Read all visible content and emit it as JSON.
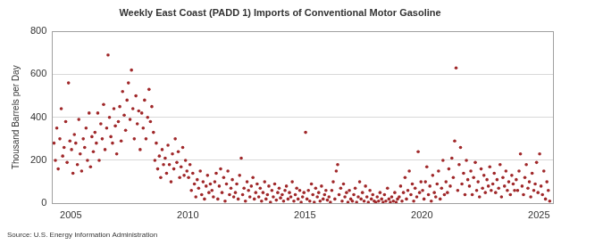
{
  "chart_data": {
    "type": "scatter",
    "title": "Weekly East Coast (PADD 1) Imports of Conventional Motor Gasoline",
    "y_label": "Thousand Barrels per Day",
    "source": "Source: U.S. Energy Information Administration",
    "color": "#a0282a",
    "marker": "circle",
    "grid": true,
    "xlim": [
      2004.2,
      2025.6
    ],
    "xticks": [
      2005,
      2010,
      2015,
      2020,
      2025
    ],
    "ylim": [
      0,
      800
    ],
    "yticks": [
      0,
      200,
      400,
      600,
      800
    ],
    "x": [
      2004.28,
      2004.34,
      2004.4,
      2004.46,
      2004.53,
      2004.59,
      2004.65,
      2004.71,
      2004.78,
      2004.84,
      2004.9,
      2004.96,
      2005.03,
      2005.09,
      2005.15,
      2005.21,
      2005.28,
      2005.34,
      2005.4,
      2005.46,
      2005.53,
      2005.59,
      2005.65,
      2005.71,
      2005.78,
      2005.84,
      2005.9,
      2005.96,
      2006.03,
      2006.09,
      2006.15,
      2006.21,
      2006.28,
      2006.34,
      2006.4,
      2006.46,
      2006.53,
      2006.59,
      2006.65,
      2006.71,
      2006.78,
      2006.84,
      2006.9,
      2006.96,
      2007.03,
      2007.09,
      2007.15,
      2007.21,
      2007.28,
      2007.34,
      2007.4,
      2007.46,
      2007.53,
      2007.59,
      2007.65,
      2007.71,
      2007.78,
      2007.84,
      2007.9,
      2007.96,
      2008.03,
      2008.09,
      2008.15,
      2008.21,
      2008.28,
      2008.34,
      2008.4,
      2008.46,
      2008.53,
      2008.59,
      2008.65,
      2008.71,
      2008.78,
      2008.84,
      2008.9,
      2008.96,
      2009.03,
      2009.09,
      2009.15,
      2009.21,
      2009.28,
      2009.34,
      2009.4,
      2009.46,
      2009.53,
      2009.59,
      2009.65,
      2009.71,
      2009.78,
      2009.84,
      2009.9,
      2009.96,
      2010.03,
      2010.09,
      2010.15,
      2010.21,
      2010.28,
      2010.34,
      2010.4,
      2010.46,
      2010.53,
      2010.59,
      2010.65,
      2010.71,
      2010.78,
      2010.84,
      2010.9,
      2010.96,
      2011.03,
      2011.09,
      2011.15,
      2011.21,
      2011.28,
      2011.34,
      2011.4,
      2011.46,
      2011.53,
      2011.59,
      2011.65,
      2011.71,
      2011.78,
      2011.84,
      2011.9,
      2011.96,
      2012.03,
      2012.09,
      2012.15,
      2012.21,
      2012.28,
      2012.34,
      2012.4,
      2012.46,
      2012.53,
      2012.59,
      2012.65,
      2012.71,
      2012.78,
      2012.84,
      2012.9,
      2012.96,
      2013.03,
      2013.09,
      2013.15,
      2013.21,
      2013.28,
      2013.34,
      2013.4,
      2013.46,
      2013.53,
      2013.59,
      2013.65,
      2013.71,
      2013.78,
      2013.84,
      2013.9,
      2013.96,
      2014.03,
      2014.09,
      2014.15,
      2014.21,
      2014.28,
      2014.34,
      2014.4,
      2014.46,
      2014.53,
      2014.59,
      2014.65,
      2014.71,
      2014.78,
      2014.84,
      2014.9,
      2014.96,
      2015.03,
      2015.09,
      2015.15,
      2015.21,
      2015.28,
      2015.34,
      2015.4,
      2015.46,
      2015.53,
      2015.59,
      2015.65,
      2015.71,
      2015.78,
      2015.84,
      2015.9,
      2015.96,
      2016.03,
      2016.09,
      2016.15,
      2016.21,
      2016.28,
      2016.34,
      2016.4,
      2016.46,
      2016.53,
      2016.59,
      2016.65,
      2016.71,
      2016.78,
      2016.84,
      2016.9,
      2016.96,
      2017.03,
      2017.09,
      2017.15,
      2017.21,
      2017.28,
      2017.34,
      2017.4,
      2017.46,
      2017.53,
      2017.59,
      2017.65,
      2017.71,
      2017.78,
      2017.84,
      2017.9,
      2017.96,
      2018.03,
      2018.09,
      2018.15,
      2018.21,
      2018.28,
      2018.34,
      2018.4,
      2018.46,
      2018.53,
      2018.59,
      2018.65,
      2018.71,
      2018.78,
      2018.84,
      2018.9,
      2018.96,
      2019.03,
      2019.09,
      2019.15,
      2019.21,
      2019.28,
      2019.34,
      2019.4,
      2019.46,
      2019.53,
      2019.59,
      2019.65,
      2019.71,
      2019.78,
      2019.84,
      2019.9,
      2019.96,
      2020.03,
      2020.09,
      2020.15,
      2020.21,
      2020.28,
      2020.34,
      2020.4,
      2020.46,
      2020.53,
      2020.59,
      2020.65,
      2020.71,
      2020.78,
      2020.84,
      2020.9,
      2020.96,
      2021.03,
      2021.09,
      2021.15,
      2021.21,
      2021.28,
      2021.34,
      2021.4,
      2021.46,
      2021.53,
      2021.59,
      2021.65,
      2021.71,
      2021.78,
      2021.84,
      2021.9,
      2021.96,
      2022.03,
      2022.09,
      2022.15,
      2022.21,
      2022.28,
      2022.34,
      2022.4,
      2022.46,
      2022.53,
      2022.59,
      2022.65,
      2022.71,
      2022.78,
      2022.84,
      2022.9,
      2022.96,
      2023.03,
      2023.09,
      2023.15,
      2023.21,
      2023.28,
      2023.34,
      2023.4,
      2023.46,
      2023.53,
      2023.59,
      2023.65,
      2023.71,
      2023.78,
      2023.84,
      2023.9,
      2023.96,
      2024.03,
      2024.09,
      2024.15,
      2024.21,
      2024.28,
      2024.34,
      2024.4,
      2024.46,
      2024.53,
      2024.59,
      2024.65,
      2024.71,
      2024.78,
      2024.84,
      2024.9,
      2024.96,
      2025.03,
      2025.09,
      2025.15,
      2025.21,
      2025.28,
      2025.34,
      2025.4,
      2025.46
    ],
    "values": [
      280,
      200,
      350,
      160,
      300,
      440,
      220,
      260,
      380,
      190,
      560,
      290,
      250,
      140,
      320,
      280,
      180,
      390,
      230,
      150,
      300,
      260,
      350,
      200,
      420,
      170,
      310,
      240,
      330,
      280,
      420,
      200,
      370,
      300,
      460,
      250,
      350,
      690,
      400,
      310,
      280,
      440,
      360,
      230,
      380,
      450,
      290,
      520,
      410,
      340,
      480,
      560,
      390,
      620,
      440,
      300,
      500,
      370,
      430,
      250,
      420,
      350,
      480,
      300,
      400,
      530,
      380,
      450,
      330,
      200,
      280,
      160,
      220,
      120,
      250,
      180,
      210,
      140,
      270,
      180,
      100,
      230,
      160,
      300,
      190,
      240,
      120,
      170,
      260,
      130,
      200,
      150,
      120,
      180,
      60,
      140,
      90,
      30,
      110,
      70,
      150,
      40,
      100,
      20,
      80,
      130,
      50,
      90,
      60,
      30,
      100,
      140,
      20,
      80,
      160,
      50,
      120,
      10,
      90,
      150,
      40,
      70,
      110,
      30,
      50,
      90,
      20,
      130,
      210,
      40,
      70,
      10,
      100,
      60,
      30,
      80,
      120,
      20,
      50,
      90,
      30,
      70,
      10,
      50,
      100,
      20,
      40,
      80,
      5,
      60,
      30,
      90,
      15,
      50,
      70,
      25,
      40,
      10,
      60,
      80,
      20,
      50,
      30,
      100,
      10,
      40,
      70,
      20,
      60,
      5,
      30,
      50,
      330,
      20,
      60,
      10,
      90,
      40,
      5,
      70,
      30,
      50,
      10,
      80,
      20,
      40,
      60,
      15,
      30,
      5,
      60,
      100,
      20,
      150,
      180,
      40,
      70,
      10,
      90,
      30,
      50,
      5,
      60,
      20,
      10,
      40,
      70,
      5,
      30,
      100,
      20,
      50,
      10,
      80,
      30,
      5,
      60,
      20,
      40,
      10,
      5,
      30,
      10,
      50,
      20,
      5,
      40,
      10,
      70,
      20,
      5,
      30,
      10,
      50,
      5,
      20,
      30,
      80,
      10,
      50,
      120,
      20,
      60,
      150,
      40,
      90,
      10,
      70,
      30,
      240,
      50,
      100,
      60,
      20,
      100,
      170,
      40,
      80,
      10,
      130,
      50,
      30,
      90,
      150,
      20,
      70,
      200,
      40,
      100,
      50,
      160,
      80,
      210,
      120,
      290,
      630,
      60,
      180,
      260,
      90,
      140,
      40,
      200,
      110,
      80,
      150,
      40,
      120,
      190,
      60,
      100,
      30,
      160,
      70,
      130,
      50,
      110,
      80,
      170,
      60,
      90,
      140,
      50,
      110,
      70,
      180,
      30,
      120,
      80,
      150,
      60,
      100,
      40,
      130,
      90,
      60,
      110,
      60,
      150,
      230,
      80,
      40,
      120,
      180,
      70,
      100,
      30,
      140,
      60,
      90,
      190,
      50,
      230,
      80,
      40,
      150,
      20,
      100,
      60,
      10
    ]
  }
}
